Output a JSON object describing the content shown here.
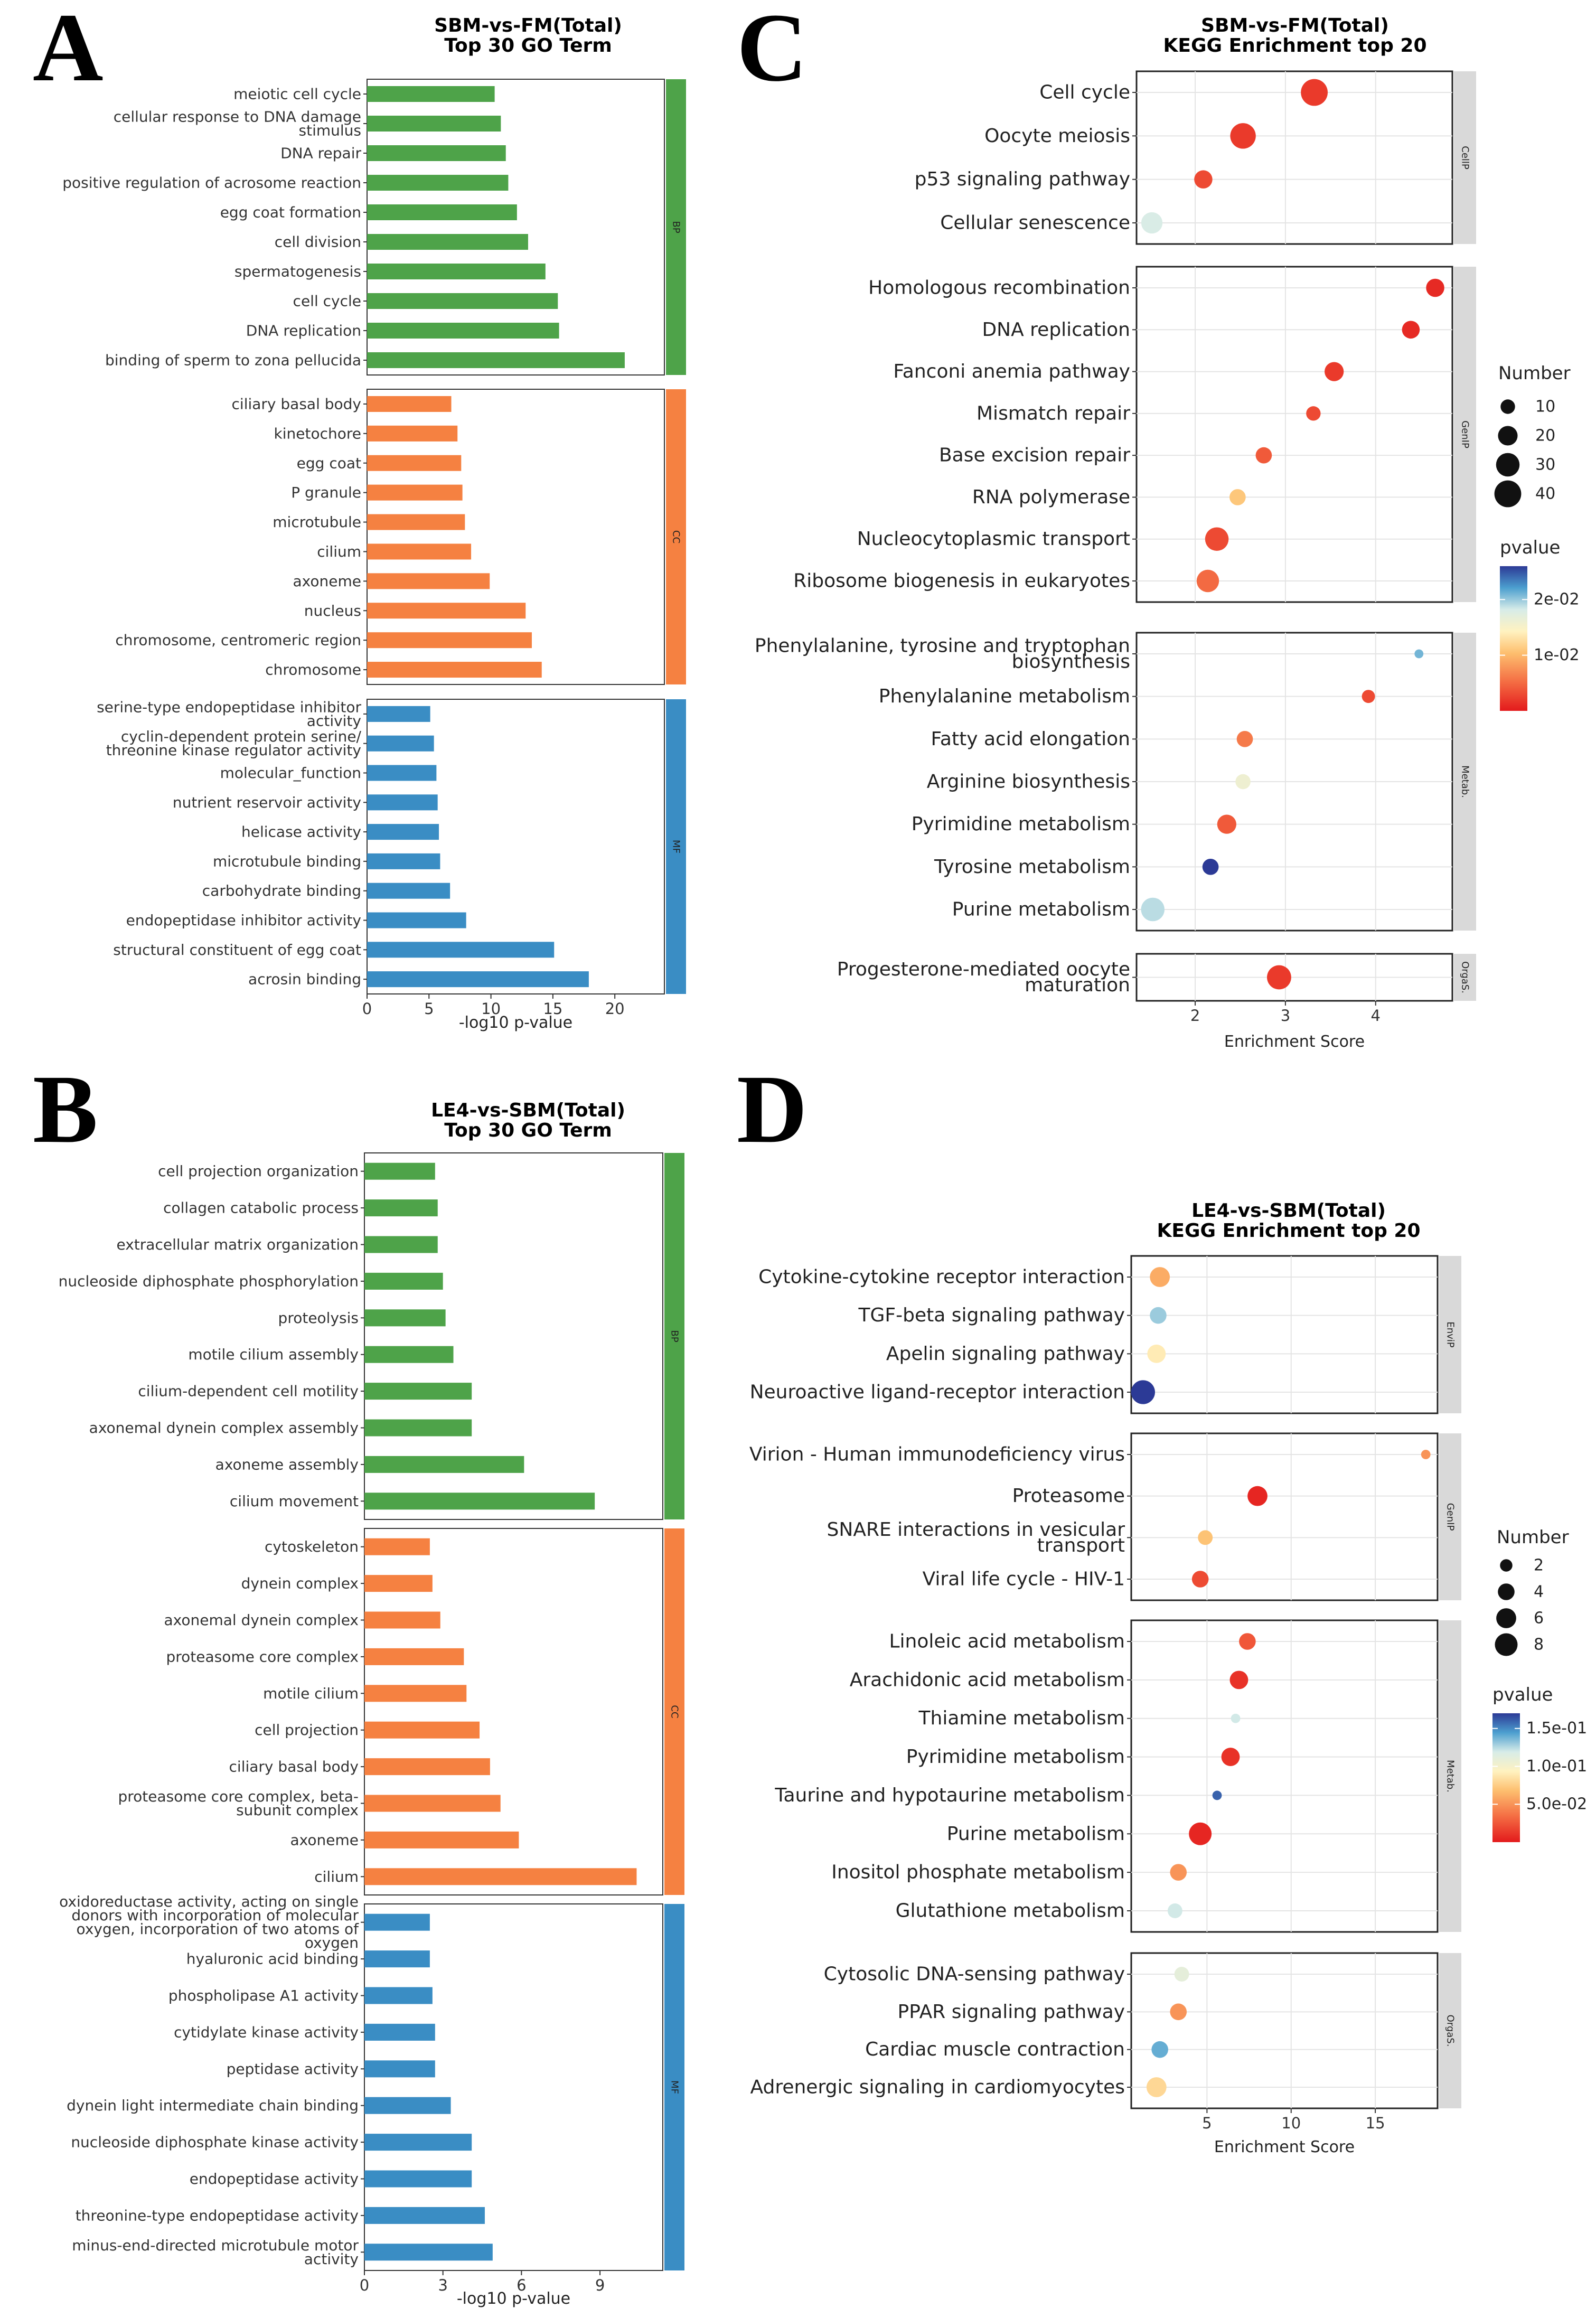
{
  "chart_data": [
    {
      "panel": "A",
      "type": "bar",
      "orientation": "horizontal",
      "title": "SBM-vs-FM(Total)",
      "subtitle": "Top 30 GO Term",
      "xlabel": "-log10 p-value",
      "xlim": [
        0,
        24
      ],
      "xticks": [
        0,
        5,
        10,
        15,
        20
      ],
      "facets": [
        {
          "name": "BP",
          "color": "#4ea349",
          "terms": [
            [
              "meiotic cell cycle"
            ],
            [
              "cellular response to DNA damage",
              "stimulus"
            ],
            [
              "DNA repair"
            ],
            [
              "positive regulation of acrosome reaction"
            ],
            [
              "egg coat formation"
            ],
            [
              "cell division"
            ],
            [
              "spermatogenesis"
            ],
            [
              "cell cycle"
            ],
            [
              "DNA replication"
            ],
            [
              "binding of sperm to zona pellucida"
            ]
          ],
          "values": [
            10.3,
            10.8,
            11.2,
            11.4,
            12.1,
            13.0,
            14.4,
            15.4,
            15.5,
            20.8
          ]
        },
        {
          "name": "CC",
          "color": "#f58141",
          "terms": [
            [
              "ciliary basal body"
            ],
            [
              "kinetochore"
            ],
            [
              "egg coat"
            ],
            [
              "P granule"
            ],
            [
              "microtubule"
            ],
            [
              "cilium"
            ],
            [
              "axoneme"
            ],
            [
              "nucleus"
            ],
            [
              "chromosome, centromeric region"
            ],
            [
              "chromosome"
            ]
          ],
          "values": [
            6.8,
            7.3,
            7.6,
            7.7,
            7.9,
            8.4,
            9.9,
            12.8,
            13.3,
            14.1
          ]
        },
        {
          "name": "MF",
          "color": "#3a8dc4",
          "terms": [
            [
              "serine-type endopeptidase inhibitor",
              "activity"
            ],
            [
              "cyclin-dependent protein serine/",
              "threonine kinase regulator activity"
            ],
            [
              "molecular_function"
            ],
            [
              "nutrient reservoir activity"
            ],
            [
              "helicase activity"
            ],
            [
              "microtubule binding"
            ],
            [
              "carbohydrate binding"
            ],
            [
              "endopeptidase inhibitor activity"
            ],
            [
              "structural constituent of egg coat"
            ],
            [
              "acrosin binding"
            ]
          ],
          "values": [
            5.1,
            5.4,
            5.6,
            5.7,
            5.8,
            5.9,
            6.7,
            8.0,
            15.1,
            17.9
          ]
        }
      ]
    },
    {
      "panel": "B",
      "type": "bar",
      "orientation": "horizontal",
      "title": "LE4-vs-SBM(Total)",
      "subtitle": "Top 30 GO Term",
      "xlabel": "-log10 p-value",
      "xlim": [
        0,
        11.4
      ],
      "xticks": [
        0,
        3,
        6,
        9
      ],
      "facets": [
        {
          "name": "BP",
          "color": "#4ea349",
          "terms": [
            [
              "cell projection organization"
            ],
            [
              "collagen catabolic process"
            ],
            [
              "extracellular matrix organization"
            ],
            [
              "nucleoside diphosphate phosphorylation"
            ],
            [
              "proteolysis"
            ],
            [
              "motile cilium assembly"
            ],
            [
              "cilium-dependent cell motility"
            ],
            [
              "axonemal dynein complex assembly"
            ],
            [
              "axoneme assembly"
            ],
            [
              "cilium movement"
            ]
          ],
          "values": [
            2.7,
            2.8,
            2.8,
            3.0,
            3.1,
            3.4,
            4.1,
            4.1,
            6.1,
            8.8
          ]
        },
        {
          "name": "CC",
          "color": "#f58141",
          "terms": [
            [
              "cytoskeleton"
            ],
            [
              "dynein complex"
            ],
            [
              "axonemal dynein complex"
            ],
            [
              "proteasome core complex"
            ],
            [
              "motile cilium"
            ],
            [
              "cell projection"
            ],
            [
              "ciliary basal body"
            ],
            [
              "proteasome core complex, beta-",
              "subunit complex"
            ],
            [
              "axoneme"
            ],
            [
              "cilium"
            ]
          ],
          "values": [
            2.5,
            2.6,
            2.9,
            3.8,
            3.9,
            4.4,
            4.8,
            5.2,
            5.9,
            10.4
          ]
        },
        {
          "name": "MF",
          "color": "#3a8dc4",
          "terms": [
            [
              "oxidoreductase activity, acting on single",
              "donors with incorporation of molecular",
              "oxygen, incorporation of two atoms of",
              "oxygen"
            ],
            [
              "hyaluronic acid binding"
            ],
            [
              "phospholipase A1 activity"
            ],
            [
              "cytidylate kinase activity"
            ],
            [
              "peptidase activity"
            ],
            [
              "dynein light intermediate chain binding"
            ],
            [
              "nucleoside diphosphate kinase activity"
            ],
            [
              "endopeptidase activity"
            ],
            [
              "threonine-type endopeptidase activity"
            ],
            [
              "minus-end-directed microtubule motor",
              "activity"
            ]
          ],
          "values": [
            2.5,
            2.5,
            2.6,
            2.7,
            2.7,
            3.3,
            4.1,
            4.1,
            4.6,
            4.9
          ]
        }
      ]
    },
    {
      "panel": "C",
      "type": "scatter",
      "title": "SBM-vs-FM(Total)",
      "subtitle": "KEGG Enrichment top 20",
      "xlabel": "Enrichment Score",
      "xlim": [
        1.35,
        4.85
      ],
      "xticks": [
        2,
        3,
        4
      ],
      "size_legend_title": "Number",
      "size_legend": [
        10,
        20,
        30,
        40
      ],
      "color_legend_title": "pvalue",
      "color_legend_ticks": [
        "2e-02",
        "1e-02"
      ],
      "color_legend_tick_values": [
        0.02,
        0.01
      ],
      "pvalue_range": [
        0,
        0.026
      ],
      "facets": [
        {
          "name": "CellP",
          "points": [
            {
              "term": [
                "Cell cycle"
              ],
              "x": 3.32,
              "count": 40,
              "p": 0.002
            },
            {
              "term": [
                "Oocyte meiosis"
              ],
              "x": 2.53,
              "count": 36,
              "p": 0.002
            },
            {
              "term": [
                "p53 signaling pathway"
              ],
              "x": 2.09,
              "count": 17,
              "p": 0.003
            },
            {
              "term": [
                "Cellular senescence"
              ],
              "x": 1.52,
              "count": 24,
              "p": 0.018
            }
          ]
        },
        {
          "name": "GenIP",
          "points": [
            {
              "term": [
                "Homologous recombination"
              ],
              "x": 4.66,
              "count": 17,
              "p": 0.001
            },
            {
              "term": [
                "DNA replication"
              ],
              "x": 4.39,
              "count": 16,
              "p": 0.001
            },
            {
              "term": [
                "Fanconi anemia pathway"
              ],
              "x": 3.54,
              "count": 19,
              "p": 0.002
            },
            {
              "term": [
                "Mismatch repair"
              ],
              "x": 3.31,
              "count": 10,
              "p": 0.003
            },
            {
              "term": [
                "Base excision repair"
              ],
              "x": 2.76,
              "count": 13,
              "p": 0.004
            },
            {
              "term": [
                "RNA polymerase"
              ],
              "x": 2.47,
              "count": 13,
              "p": 0.011
            },
            {
              "term": [
                "Nucleocytoplasmic transport"
              ],
              "x": 2.24,
              "count": 30,
              "p": 0.003
            },
            {
              "term": [
                "Ribosome biogenesis in eukaryotes"
              ],
              "x": 2.14,
              "count": 27,
              "p": 0.005
            }
          ]
        },
        {
          "name": "Metab.",
          "points": [
            {
              "term": [
                "Phenylalanine, tyrosine and tryptophan",
                "biosynthesis"
              ],
              "x": 4.48,
              "count": 3,
              "p": 0.021
            },
            {
              "term": [
                "Phenylalanine metabolism"
              ],
              "x": 3.92,
              "count": 8,
              "p": 0.003
            },
            {
              "term": [
                "Fatty acid elongation"
              ],
              "x": 2.55,
              "count": 13,
              "p": 0.006
            },
            {
              "term": [
                "Arginine biosynthesis"
              ],
              "x": 2.53,
              "count": 11,
              "p": 0.016
            },
            {
              "term": [
                "Pyrimidine metabolism"
              ],
              "x": 2.35,
              "count": 19,
              "p": 0.004
            },
            {
              "term": [
                "Tyrosine metabolism"
              ],
              "x": 2.17,
              "count": 13,
              "p": 0.026
            },
            {
              "term": [
                "Purine metabolism"
              ],
              "x": 1.53,
              "count": 30,
              "p": 0.019
            }
          ]
        },
        {
          "name": "OrgaS.",
          "points": [
            {
              "term": [
                "Progesterone-mediated oocyte",
                "maturation"
              ],
              "x": 2.93,
              "count": 32,
              "p": 0.002
            }
          ]
        }
      ]
    },
    {
      "panel": "D",
      "type": "scatter",
      "title": "LE4-vs-SBM(Total)",
      "subtitle": "KEGG Enrichment top 20",
      "xlabel": "Enrichment Score",
      "xlim": [
        0.5,
        18.7
      ],
      "xticks": [
        5,
        10,
        15
      ],
      "size_legend_title": "Number",
      "size_legend": [
        2,
        4,
        6,
        8
      ],
      "color_legend_title": "pvalue",
      "color_legend_ticks": [
        "1.5e-01",
        "1.0e-01",
        "5.0e-02"
      ],
      "color_legend_tick_values": [
        0.15,
        0.1,
        0.05
      ],
      "pvalue_range": [
        0,
        0.17
      ],
      "facets": [
        {
          "name": "EnviP",
          "points": [
            {
              "term": [
                "Cytokine-cytokine receptor interaction"
              ],
              "x": 2.2,
              "count": 6,
              "p": 0.06
            },
            {
              "term": [
                "TGF-beta signaling pathway"
              ],
              "x": 2.1,
              "count": 4,
              "p": 0.13
            },
            {
              "term": [
                "Apelin signaling pathway"
              ],
              "x": 2.0,
              "count": 5,
              "p": 0.09
            },
            {
              "term": [
                "Neuroactive ligand-receptor interaction"
              ],
              "x": 1.2,
              "count": 9,
              "p": 0.17
            }
          ]
        },
        {
          "name": "GenIP",
          "points": [
            {
              "term": [
                "Virion - Human immunodeficiency virus"
              ],
              "x": 18.0,
              "count": 1,
              "p": 0.05
            },
            {
              "term": [
                "Proteasome"
              ],
              "x": 8.0,
              "count": 6,
              "p": 0.005
            },
            {
              "term": [
                "SNARE interactions in vesicular",
                "transport"
              ],
              "x": 4.9,
              "count": 3,
              "p": 0.07
            },
            {
              "term": [
                "Viral life cycle - HIV-1"
              ],
              "x": 4.6,
              "count": 4,
              "p": 0.02
            }
          ]
        },
        {
          "name": "Metab.",
          "points": [
            {
              "term": [
                "Linoleic acid metabolism"
              ],
              "x": 7.4,
              "count": 4,
              "p": 0.025
            },
            {
              "term": [
                "Arachidonic acid metabolism"
              ],
              "x": 6.9,
              "count": 5,
              "p": 0.01
            },
            {
              "term": [
                "Thiamine metabolism"
              ],
              "x": 6.7,
              "count": 1,
              "p": 0.12
            },
            {
              "term": [
                "Pyrimidine metabolism"
              ],
              "x": 6.4,
              "count": 5,
              "p": 0.01
            },
            {
              "term": [
                "Taurine and hypotaurine metabolism"
              ],
              "x": 5.6,
              "count": 1,
              "p": 0.16
            },
            {
              "term": [
                "Purine metabolism"
              ],
              "x": 4.6,
              "count": 8,
              "p": 0.005
            },
            {
              "term": [
                "Inositol phosphate metabolism"
              ],
              "x": 3.3,
              "count": 4,
              "p": 0.05
            },
            {
              "term": [
                "Glutathione metabolism"
              ],
              "x": 3.1,
              "count": 3,
              "p": 0.12
            }
          ]
        },
        {
          "name": "OrgaS.",
          "points": [
            {
              "term": [
                "Cytosolic DNA-sensing pathway"
              ],
              "x": 3.5,
              "count": 3,
              "p": 0.11
            },
            {
              "term": [
                "PPAR signaling pathway"
              ],
              "x": 3.3,
              "count": 4,
              "p": 0.05
            },
            {
              "term": [
                "Cardiac muscle contraction"
              ],
              "x": 2.2,
              "count": 4,
              "p": 0.14
            },
            {
              "term": [
                "Adrenergic signaling in cardiomyocytes"
              ],
              "x": 2.0,
              "count": 6,
              "p": 0.08
            }
          ]
        }
      ]
    }
  ]
}
